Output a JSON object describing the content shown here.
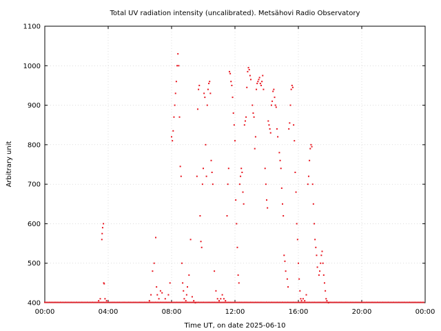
{
  "chart_data": {
    "type": "scatter",
    "title": "Total UV radiation intensity (uncalibrated). Metsähovi Radio Observatory",
    "xlabel": "Time UT, on date 2025-06-10",
    "ylabel": "Arbitrary unit",
    "xlim": [
      0,
      24
    ],
    "ylim": [
      400,
      1100
    ],
    "x_ticks": [
      {
        "value": 0,
        "label": "00:00"
      },
      {
        "value": 4,
        "label": "04:00"
      },
      {
        "value": 8,
        "label": "08:00"
      },
      {
        "value": 12,
        "label": "12:00"
      },
      {
        "value": 16,
        "label": "16:00"
      },
      {
        "value": 20,
        "label": "20:00"
      },
      {
        "value": 24,
        "label": "00:00"
      }
    ],
    "y_ticks": [
      400,
      500,
      600,
      700,
      800,
      900,
      1000,
      1100
    ],
    "grid": true,
    "colors": {
      "points": "#e8141e",
      "grid": "#c8c8c8",
      "axis": "#000000"
    },
    "series": [
      {
        "points": [
          [
            3.4,
            405
          ],
          [
            3.5,
            410
          ],
          [
            3.6,
            560
          ],
          [
            3.62,
            575
          ],
          [
            3.65,
            590
          ],
          [
            3.7,
            600
          ],
          [
            3.72,
            450
          ],
          [
            3.75,
            448
          ],
          [
            3.8,
            410
          ],
          [
            3.9,
            405
          ],
          [
            6.6,
            405
          ],
          [
            6.7,
            420
          ],
          [
            6.8,
            480
          ],
          [
            6.9,
            500
          ],
          [
            7.0,
            565
          ],
          [
            7.05,
            440
          ],
          [
            7.1,
            420
          ],
          [
            7.2,
            410
          ],
          [
            7.3,
            430
          ],
          [
            7.4,
            425
          ],
          [
            7.6,
            410
          ],
          [
            7.8,
            420
          ],
          [
            7.9,
            450
          ],
          [
            8.0,
            820
          ],
          [
            8.05,
            810
          ],
          [
            8.1,
            835
          ],
          [
            8.15,
            870
          ],
          [
            8.2,
            900
          ],
          [
            8.25,
            930
          ],
          [
            8.3,
            960
          ],
          [
            8.35,
            1000
          ],
          [
            8.4,
            1030
          ],
          [
            8.45,
            1000
          ],
          [
            8.5,
            870
          ],
          [
            8.55,
            745
          ],
          [
            8.6,
            720
          ],
          [
            8.65,
            500
          ],
          [
            8.7,
            450
          ],
          [
            8.75,
            430
          ],
          [
            8.8,
            410
          ],
          [
            8.9,
            405
          ],
          [
            8.95,
            420
          ],
          [
            9.0,
            440
          ],
          [
            9.1,
            470
          ],
          [
            9.2,
            560
          ],
          [
            9.3,
            415
          ],
          [
            9.4,
            405
          ],
          [
            9.5,
            400
          ],
          [
            9.6,
            720
          ],
          [
            9.65,
            890
          ],
          [
            9.7,
            940
          ],
          [
            9.75,
            950
          ],
          [
            9.8,
            620
          ],
          [
            9.85,
            555
          ],
          [
            9.9,
            540
          ],
          [
            9.95,
            700
          ],
          [
            10.0,
            740
          ],
          [
            10.05,
            930
          ],
          [
            10.1,
            920
          ],
          [
            10.15,
            800
          ],
          [
            10.2,
            720
          ],
          [
            10.25,
            900
          ],
          [
            10.3,
            940
          ],
          [
            10.35,
            955
          ],
          [
            10.4,
            960
          ],
          [
            10.45,
            930
          ],
          [
            10.5,
            760
          ],
          [
            10.55,
            730
          ],
          [
            10.6,
            700
          ],
          [
            10.7,
            480
          ],
          [
            10.8,
            430
          ],
          [
            10.9,
            410
          ],
          [
            11.0,
            405
          ],
          [
            11.1,
            410
          ],
          [
            11.2,
            420
          ],
          [
            11.3,
            410
          ],
          [
            11.4,
            405
          ],
          [
            11.5,
            620
          ],
          [
            11.55,
            700
          ],
          [
            11.6,
            740
          ],
          [
            11.65,
            985
          ],
          [
            11.7,
            980
          ],
          [
            11.75,
            960
          ],
          [
            11.8,
            950
          ],
          [
            11.85,
            920
          ],
          [
            11.9,
            880
          ],
          [
            11.95,
            850
          ],
          [
            12.0,
            810
          ],
          [
            12.05,
            660
          ],
          [
            12.1,
            600
          ],
          [
            12.15,
            540
          ],
          [
            12.2,
            470
          ],
          [
            12.25,
            450
          ],
          [
            12.3,
            700
          ],
          [
            12.35,
            720
          ],
          [
            12.4,
            740
          ],
          [
            12.45,
            730
          ],
          [
            12.5,
            680
          ],
          [
            12.55,
            650
          ],
          [
            12.6,
            850
          ],
          [
            12.65,
            860
          ],
          [
            12.7,
            870
          ],
          [
            12.75,
            945
          ],
          [
            12.8,
            985
          ],
          [
            12.85,
            995
          ],
          [
            12.9,
            990
          ],
          [
            12.95,
            975
          ],
          [
            13.0,
            965
          ],
          [
            13.1,
            900
          ],
          [
            13.15,
            880
          ],
          [
            13.2,
            870
          ],
          [
            13.25,
            790
          ],
          [
            13.3,
            820
          ],
          [
            13.35,
            940
          ],
          [
            13.4,
            955
          ],
          [
            13.45,
            960
          ],
          [
            13.5,
            965
          ],
          [
            13.55,
            970
          ],
          [
            13.6,
            955
          ],
          [
            13.65,
            950
          ],
          [
            13.7,
            960
          ],
          [
            13.75,
            975
          ],
          [
            13.8,
            940
          ],
          [
            13.9,
            740
          ],
          [
            13.95,
            700
          ],
          [
            14.0,
            660
          ],
          [
            14.05,
            640
          ],
          [
            14.1,
            860
          ],
          [
            14.15,
            850
          ],
          [
            14.2,
            840
          ],
          [
            14.25,
            830
          ],
          [
            14.3,
            900
          ],
          [
            14.35,
            910
          ],
          [
            14.4,
            935
          ],
          [
            14.45,
            940
          ],
          [
            14.5,
            920
          ],
          [
            14.55,
            900
          ],
          [
            14.6,
            895
          ],
          [
            14.65,
            840
          ],
          [
            14.7,
            820
          ],
          [
            14.8,
            780
          ],
          [
            14.85,
            760
          ],
          [
            14.9,
            740
          ],
          [
            14.95,
            690
          ],
          [
            15.0,
            650
          ],
          [
            15.05,
            620
          ],
          [
            15.1,
            520
          ],
          [
            15.15,
            505
          ],
          [
            15.2,
            480
          ],
          [
            15.3,
            460
          ],
          [
            15.35,
            440
          ],
          [
            15.4,
            840
          ],
          [
            15.45,
            855
          ],
          [
            15.5,
            900
          ],
          [
            15.55,
            940
          ],
          [
            15.6,
            950
          ],
          [
            15.65,
            945
          ],
          [
            15.7,
            850
          ],
          [
            15.75,
            810
          ],
          [
            15.8,
            730
          ],
          [
            15.85,
            680
          ],
          [
            15.9,
            600
          ],
          [
            15.95,
            560
          ],
          [
            16.0,
            500
          ],
          [
            16.05,
            460
          ],
          [
            16.1,
            430
          ],
          [
            16.15,
            410
          ],
          [
            16.2,
            405
          ],
          [
            16.3,
            410
          ],
          [
            16.4,
            405
          ],
          [
            16.5,
            420
          ],
          [
            16.6,
            700
          ],
          [
            16.65,
            720
          ],
          [
            16.7,
            760
          ],
          [
            16.75,
            790
          ],
          [
            16.8,
            800
          ],
          [
            16.85,
            795
          ],
          [
            16.9,
            700
          ],
          [
            16.95,
            650
          ],
          [
            17.0,
            600
          ],
          [
            17.05,
            560
          ],
          [
            17.1,
            540
          ],
          [
            17.15,
            520
          ],
          [
            17.2,
            490
          ],
          [
            17.3,
            470
          ],
          [
            17.35,
            480
          ],
          [
            17.4,
            500
          ],
          [
            17.45,
            520
          ],
          [
            17.5,
            530
          ],
          [
            17.55,
            500
          ],
          [
            17.6,
            470
          ],
          [
            17.65,
            450
          ],
          [
            17.7,
            430
          ],
          [
            17.75,
            410
          ],
          [
            17.8,
            405
          ],
          [
            17.9,
            400
          ]
        ]
      }
    ]
  }
}
